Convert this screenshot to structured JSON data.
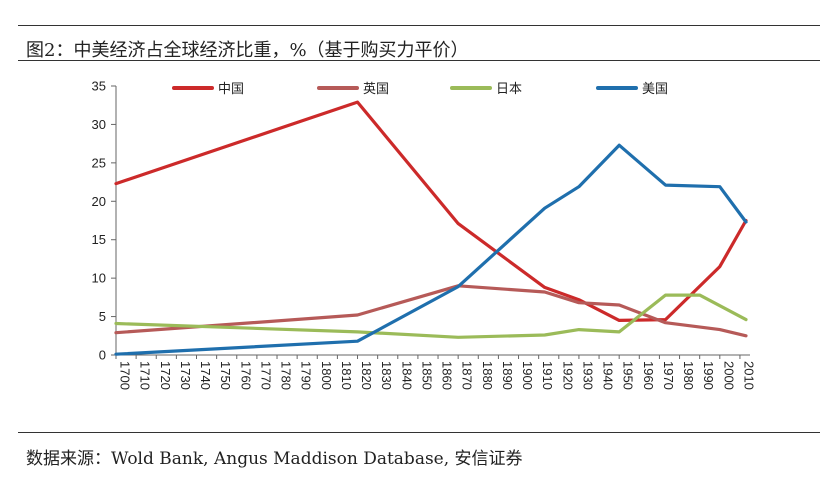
{
  "header": {
    "title": "图2：中美经济占全球经济比重，%（基于购买力平价）"
  },
  "footer": {
    "source": "数据来源：Wold Bank, Angus Maddison Database, 安信证券"
  },
  "chart_data": {
    "type": "line",
    "title": "图2：中美经济占全球经济比重，%（基于购买力平价）",
    "xlabel": "",
    "ylabel": "",
    "ylim": [
      0,
      35
    ],
    "yticks": [
      0,
      5,
      10,
      15,
      20,
      25,
      30,
      35
    ],
    "categories": [
      "1700",
      "1710",
      "1720",
      "1730",
      "1740",
      "1750",
      "1760",
      "1770",
      "1780",
      "1790",
      "1800",
      "1810",
      "1820",
      "1830",
      "1840",
      "1850",
      "1860",
      "1870",
      "1880",
      "1890",
      "1900",
      "1910",
      "1920",
      "1930",
      "1940",
      "1950",
      "1960",
      "1970",
      "1980",
      "1990",
      "2000",
      "2010"
    ],
    "legend_position": "top",
    "series": [
      {
        "name": "中国",
        "color": "#cc2a2a",
        "points": [
          [
            1700,
            22.3
          ],
          [
            1820,
            32.9
          ],
          [
            1870,
            17.1
          ],
          [
            1913,
            8.8
          ],
          [
            1930,
            7.2
          ],
          [
            1950,
            4.5
          ],
          [
            1973,
            4.6
          ],
          [
            2000,
            11.5
          ],
          [
            2013,
            17.5
          ]
        ]
      },
      {
        "name": "英国",
        "color": "#b65a58",
        "points": [
          [
            1700,
            2.9
          ],
          [
            1820,
            5.2
          ],
          [
            1870,
            9.0
          ],
          [
            1913,
            8.2
          ],
          [
            1930,
            6.8
          ],
          [
            1950,
            6.5
          ],
          [
            1973,
            4.2
          ],
          [
            2000,
            3.3
          ],
          [
            2013,
            2.5
          ]
        ]
      },
      {
        "name": "日本",
        "color": "#9bbb59",
        "points": [
          [
            1700,
            4.1
          ],
          [
            1820,
            3.0
          ],
          [
            1870,
            2.3
          ],
          [
            1913,
            2.6
          ],
          [
            1930,
            3.3
          ],
          [
            1950,
            3.0
          ],
          [
            1973,
            7.8
          ],
          [
            1990,
            7.8
          ],
          [
            2013,
            4.6
          ]
        ]
      },
      {
        "name": "美国",
        "color": "#1f6fad",
        "points": [
          [
            1700,
            0.1
          ],
          [
            1820,
            1.8
          ],
          [
            1870,
            8.9
          ],
          [
            1913,
            19.1
          ],
          [
            1930,
            21.9
          ],
          [
            1950,
            27.3
          ],
          [
            1973,
            22.1
          ],
          [
            2000,
            21.9
          ],
          [
            2013,
            17.3
          ]
        ]
      }
    ]
  }
}
